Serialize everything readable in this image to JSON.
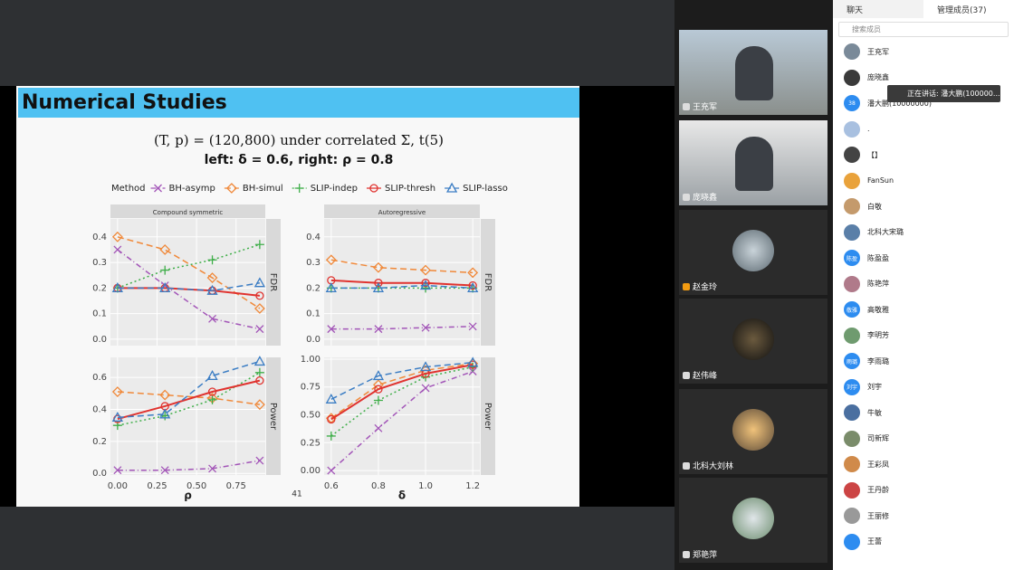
{
  "slide": {
    "title": "Numerical Studies",
    "subtitle_1": "(T, p) = (120,800) under correlated Σ, t(5)",
    "subtitle_2": "left: δ = 0.6, right: ρ = 0.8",
    "legend_title": "Method",
    "page_number": "41"
  },
  "chart_data": [
    {
      "type": "line",
      "title": "Compound symmetric",
      "strip": "FDR",
      "x": [
        0,
        0.3,
        0.6,
        0.9
      ],
      "xlim": [
        -0.045,
        0.935
      ],
      "ylim": [
        -0.025,
        0.47
      ],
      "yticks": [
        {
          "value": 0,
          "label": "0.0"
        },
        {
          "value": 0.1,
          "label": "0.1"
        },
        {
          "value": 0.2,
          "label": "0.2"
        },
        {
          "value": 0.3,
          "label": "0.3"
        },
        {
          "value": 0.4,
          "label": "0.4"
        }
      ],
      "series": [
        {
          "name": "BH-asymp",
          "color": "#a356b8",
          "values": [
            0.35,
            0.21,
            0.08,
            0.04
          ]
        },
        {
          "name": "BH-simul",
          "color": "#f0893a",
          "values": [
            0.4,
            0.35,
            0.24,
            0.12
          ]
        },
        {
          "name": "SLIP-indep",
          "color": "#3fae49",
          "values": [
            0.2,
            0.27,
            0.31,
            0.37
          ]
        },
        {
          "name": "SLIP-thresh",
          "color": "#e0332f",
          "values": [
            0.2,
            0.2,
            0.19,
            0.17
          ]
        },
        {
          "name": "SLIP-lasso",
          "color": "#3b7dc4",
          "values": [
            0.2,
            0.2,
            0.19,
            0.22
          ]
        }
      ]
    },
    {
      "type": "line",
      "title": "Autoregressive",
      "strip": "FDR",
      "x": [
        0.6,
        0.8,
        1.0,
        1.2
      ],
      "xlim": [
        0.57,
        1.23
      ],
      "ylim": [
        -0.025,
        0.47
      ],
      "yticks": [
        {
          "value": 0,
          "label": "0.0"
        },
        {
          "value": 0.1,
          "label": "0.1"
        },
        {
          "value": 0.2,
          "label": "0.2"
        },
        {
          "value": 0.3,
          "label": "0.3"
        },
        {
          "value": 0.4,
          "label": "0.4"
        }
      ],
      "series": [
        {
          "color": "#a356b8",
          "values": [
            0.04,
            0.04,
            0.045,
            0.05
          ]
        },
        {
          "color": "#f0893a",
          "values": [
            0.31,
            0.28,
            0.27,
            0.26
          ]
        },
        {
          "color": "#3fae49",
          "values": [
            0.2,
            0.2,
            0.2,
            0.2
          ]
        },
        {
          "color": "#e0332f",
          "values": [
            0.23,
            0.22,
            0.22,
            0.21
          ]
        },
        {
          "color": "#3b7dc4",
          "values": [
            0.2,
            0.2,
            0.21,
            0.2
          ]
        }
      ]
    },
    {
      "type": "line",
      "strip": "Power",
      "x_label": "ρ",
      "x": [
        0,
        0.3,
        0.6,
        0.9
      ],
      "xlim": [
        -0.045,
        0.935
      ],
      "ylim": [
        -0.01,
        0.725
      ],
      "xticks": [
        {
          "value": 0,
          "label": "0.00"
        },
        {
          "value": 0.25,
          "label": "0.25"
        },
        {
          "value": 0.5,
          "label": "0.50"
        },
        {
          "value": 0.75,
          "label": "0.75"
        }
      ],
      "yticks": [
        {
          "value": 0,
          "label": "0.0"
        },
        0.2,
        0.4,
        0.6
      ],
      "series": [
        {
          "color": "#a356b8",
          "values": [
            0.02,
            0.02,
            0.03,
            0.08
          ]
        },
        {
          "color": "#f0893a",
          "values": [
            0.51,
            0.49,
            0.47,
            0.43
          ]
        },
        {
          "color": "#3fae49",
          "values": [
            0.3,
            0.36,
            0.46,
            0.63
          ]
        },
        {
          "color": "#e0332f",
          "values": [
            0.34,
            0.42,
            0.51,
            0.58
          ]
        },
        {
          "color": "#3b7dc4",
          "values": [
            0.35,
            0.37,
            0.61,
            0.7
          ]
        }
      ]
    },
    {
      "type": "line",
      "strip": "Power",
      "x_label": "δ",
      "x": [
        0.6,
        0.8,
        1.0,
        1.2
      ],
      "xlim": [
        0.57,
        1.23
      ],
      "ylim": [
        -0.04,
        1.016
      ],
      "xticks": [
        0.6,
        0.8,
        {
          "value": 1,
          "label": "1.0"
        },
        1.2
      ],
      "yticks": [
        {
          "value": 0,
          "label": "0.00"
        },
        0.25,
        {
          "value": 0.5,
          "label": "0.50"
        },
        0.75,
        {
          "value": 1,
          "label": "1.00"
        }
      ],
      "series": [
        {
          "color": "#a356b8",
          "values": [
            0.0,
            0.38,
            0.74,
            0.89
          ]
        },
        {
          "color": "#f0893a",
          "values": [
            0.47,
            0.77,
            0.9,
            0.96
          ]
        },
        {
          "color": "#3fae49",
          "values": [
            0.31,
            0.63,
            0.84,
            0.93
          ]
        },
        {
          "color": "#e0332f",
          "values": [
            0.46,
            0.73,
            0.87,
            0.95
          ]
        },
        {
          "color": "#3b7dc4",
          "values": [
            0.64,
            0.85,
            0.93,
            0.97
          ]
        }
      ]
    }
  ],
  "video_tiles": [
    "王充军",
    "庞晓鑫",
    "赵金玲",
    "赵伟峰",
    "北科大刘林",
    "郑艳萍"
  ],
  "sidebar": {
    "tabs": [
      "聊天",
      "管理成员(37)"
    ],
    "search_placeholder": "搜索成员",
    "speaking_tooltip": "正在讲话: 潘大鹏(100000...",
    "members": [
      {
        "name": "王充军"
      },
      {
        "name": "庞晓鑫"
      },
      {
        "avatar_text": "38",
        "name": "潘大鹏(10000000)"
      },
      {
        "name": "."
      },
      {
        "name": "【】"
      },
      {
        "name": "FanSun"
      },
      {
        "name": "白敬"
      },
      {
        "name": "北科大宋璐"
      },
      {
        "avatar_text": "陈盈",
        "name": "陈盈盈"
      },
      {
        "name": "陈艳萍"
      },
      {
        "avatar_text": "敬雅",
        "name": "高敬雅"
      },
      {
        "name": "李明芳"
      },
      {
        "avatar_text": "雨璐",
        "name": "李雨璐"
      },
      {
        "avatar_text": "刘宇",
        "name": "刘宇"
      },
      {
        "name": "牛敏"
      },
      {
        "name": "司新辉"
      },
      {
        "name": "王彩凤"
      },
      {
        "name": "王丹龄"
      },
      {
        "name": "王丽修"
      },
      {
        "name": "王蕾"
      }
    ]
  }
}
